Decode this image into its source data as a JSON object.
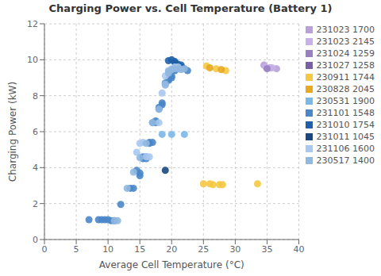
{
  "chart_data": {
    "type": "scatter",
    "title": "Charging Power vs. Cell Temperature (Battery 1)",
    "x_label": "Average Cell Temperature (°C)",
    "y_label": "Charging Power (kW)",
    "xlim": [
      0,
      40
    ],
    "ylim": [
      0,
      12
    ],
    "xticks": [
      0,
      5,
      10,
      15,
      20,
      25,
      30,
      35,
      40
    ],
    "yticks": [
      0,
      2,
      4,
      6,
      8,
      10,
      12
    ],
    "grid": true,
    "legend": "right",
    "series": [
      {
        "name": "231023 1700",
        "color": "#b8a0d8",
        "x": [
          34.5,
          35.5,
          36.5
        ],
        "values": [
          9.7,
          9.55,
          9.5
        ]
      },
      {
        "name": "231023 2145",
        "color": "#c8b0e8",
        "x": [
          34.8,
          35.8
        ],
        "values": [
          9.6,
          9.55
        ]
      },
      {
        "name": "231024 1259",
        "color": "#9980c0",
        "x": [
          35.0
        ],
        "values": [
          9.5
        ]
      },
      {
        "name": "231027 1258",
        "color": "#7860a8",
        "x": [],
        "values": []
      },
      {
        "name": "230911 1744",
        "color": "#f5c842",
        "x": [
          25.0,
          26.0,
          26.5,
          27.5,
          28.0,
          25.5,
          27.0,
          28.5,
          33.5
        ],
        "values": [
          3.1,
          3.1,
          3.05,
          3.05,
          3.05,
          9.65,
          9.5,
          9.4,
          3.1
        ]
      },
      {
        "name": "230828 2045",
        "color": "#e8a820",
        "x": [
          26.0,
          27.8
        ],
        "values": [
          9.55,
          9.45
        ]
      },
      {
        "name": "230531 1900",
        "color": "#7ab8e8",
        "x": [
          18.5,
          20.0,
          22.0
        ],
        "values": [
          5.85,
          5.85,
          5.85
        ]
      },
      {
        "name": "231101 1548",
        "color": "#4a86c8",
        "x": [
          7.0,
          8.5,
          9.0,
          9.5,
          10.0,
          10.5,
          11.0,
          12.0,
          13.5,
          14.0,
          14.5,
          15.0,
          15.0,
          15.5,
          15.5,
          16.0,
          16.0,
          16.5,
          16.5,
          17.0,
          17.0,
          17.5,
          17.5,
          18.0,
          18.0,
          18.5,
          18.5,
          19.0,
          19.0,
          19.5,
          19.5,
          20.0,
          20.0,
          20.5,
          20.5,
          21.0,
          21.0,
          21.5,
          21.5,
          22.0,
          22.5
        ],
        "values": [
          1.1,
          1.1,
          1.1,
          1.1,
          1.1,
          1.05,
          1.05,
          1.95,
          2.85,
          2.85,
          3.85,
          3.7,
          3.55,
          4.5,
          4.6,
          4.5,
          4.6,
          5.4,
          5.35,
          5.4,
          6.5,
          6.5,
          6.6,
          7.25,
          7.35,
          7.5,
          7.6,
          8.6,
          8.7,
          8.85,
          8.9,
          9.0,
          9.1,
          9.4,
          9.45,
          9.5,
          9.55,
          9.55,
          9.6,
          9.5,
          9.4
        ]
      },
      {
        "name": "231010 1754",
        "color": "#2060a8",
        "x": [
          19.5,
          20.0,
          20.5,
          20.5,
          21.0,
          21.5
        ],
        "values": [
          9.95,
          10.0,
          9.9,
          9.85,
          9.75,
          9.7
        ]
      },
      {
        "name": "231011 1045",
        "color": "#1a4880",
        "x": [
          19.0
        ],
        "values": [
          3.85
        ]
      },
      {
        "name": "231106 1600",
        "color": "#a8c8f0",
        "x": [
          14.5,
          15.0,
          15.5,
          16.0,
          16.5,
          18.0,
          18.5,
          19.0,
          19.0,
          19.5,
          20.0,
          20.5,
          21.0
        ],
        "values": [
          4.85,
          5.35,
          5.4,
          4.6,
          4.6,
          6.5,
          8.15,
          8.6,
          9.1,
          9.4,
          9.5,
          9.6,
          9.6
        ]
      },
      {
        "name": "230517 1400",
        "color": "#90b8e0",
        "x": [
          11.0,
          11.5,
          13.0,
          14.0,
          15.0,
          16.0,
          17.0,
          18.0,
          19.0,
          19.5,
          19.5,
          20.0,
          20.5,
          21.0,
          21.5,
          22.0
        ],
        "values": [
          1.05,
          1.05,
          2.85,
          3.75,
          4.55,
          5.35,
          6.5,
          7.25,
          8.65,
          9.25,
          9.35,
          9.45,
          9.5,
          9.5,
          9.45,
          9.5
        ]
      }
    ]
  }
}
